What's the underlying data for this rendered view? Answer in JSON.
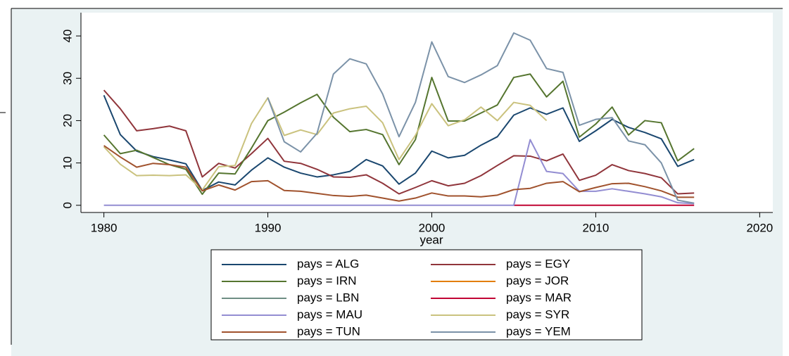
{
  "chart_data": {
    "type": "line",
    "x_label": "year",
    "x": [
      1980,
      1981,
      1982,
      1983,
      1984,
      1985,
      1986,
      1987,
      1988,
      1989,
      1990,
      1991,
      1992,
      1993,
      1994,
      1995,
      1996,
      1997,
      1998,
      1999,
      2000,
      2001,
      2002,
      2003,
      2004,
      2005,
      2006,
      2007,
      2008,
      2009,
      2010,
      2011,
      2012,
      2013,
      2014,
      2015,
      2016
    ],
    "xlim": [
      1978.6,
      2020.8
    ],
    "xticks": [
      1980,
      1990,
      2000,
      2010,
      2020
    ],
    "ylim": [
      -1.7,
      45.5
    ],
    "yticks": [
      0,
      10,
      20,
      30,
      40
    ],
    "grid": false,
    "legend_position": "bottom",
    "series": [
      {
        "name": "pays = ALG",
        "color": "#1a476f",
        "values": [
          26,
          16.7,
          12.8,
          11.5,
          10.7,
          9.8,
          3.5,
          5.5,
          4.8,
          8.3,
          11.2,
          9,
          7.6,
          6.7,
          7.2,
          8,
          10.8,
          9.3,
          5,
          7.6,
          12.8,
          11.2,
          11.8,
          14.2,
          16.2,
          21.3,
          23,
          21.5,
          23,
          15.1,
          17.6,
          20.3,
          18.4,
          17.2,
          15.7,
          9.2,
          10.8
        ]
      },
      {
        "name": "pays = EGY",
        "color": "#90353b",
        "values": [
          27.2,
          22.8,
          17.6,
          18.1,
          18.7,
          17.6,
          6.7,
          9.9,
          8.8,
          12.2,
          15.8,
          10.4,
          9.9,
          8.5,
          6.7,
          6.6,
          7.2,
          5.2,
          2.7,
          4.2,
          5.8,
          4.6,
          5.2,
          7,
          9.4,
          11.7,
          11.6,
          10.5,
          12.1,
          5.9,
          7.1,
          9.6,
          8.2,
          7.5,
          6.5,
          2.7,
          2.9
        ]
      },
      {
        "name": "pays = IRN",
        "color": "#55752f",
        "values": [
          16.6,
          12.2,
          13,
          11.3,
          9.6,
          8.5,
          2.6,
          7.6,
          7.4,
          13.5,
          20,
          22,
          24.2,
          26.2,
          20.8,
          17.4,
          17.9,
          16.7,
          9.6,
          15.5,
          30.2,
          19.9,
          19.9,
          21.8,
          23.7,
          30.2,
          31,
          25.6,
          29.3,
          16.1,
          19.2,
          23.2,
          16.6,
          20,
          19.5,
          10.5,
          13.4
        ]
      },
      {
        "name": "pays = JOR",
        "color": "#e37e00",
        "values": [
          null,
          null,
          null,
          null,
          null,
          null,
          null,
          null,
          null,
          null,
          null,
          null,
          null,
          null,
          null,
          null,
          null,
          null,
          null,
          null,
          null,
          null,
          null,
          null,
          null,
          null,
          null,
          null,
          null,
          null,
          null,
          null,
          null,
          null,
          null,
          null,
          null
        ]
      },
      {
        "name": "pays = LBN",
        "color": "#6e8e84",
        "values": [
          null,
          null,
          null,
          null,
          null,
          null,
          null,
          null,
          null,
          null,
          null,
          null,
          null,
          null,
          null,
          null,
          null,
          null,
          null,
          null,
          null,
          null,
          null,
          null,
          null,
          null,
          null,
          null,
          null,
          null,
          null,
          null,
          null,
          null,
          null,
          null,
          null
        ]
      },
      {
        "name": "pays = MAR",
        "color": "#c10534",
        "values": [
          null,
          null,
          null,
          null,
          null,
          null,
          null,
          null,
          null,
          null,
          null,
          null,
          null,
          null,
          null,
          null,
          null,
          null,
          null,
          null,
          null,
          null,
          null,
          null,
          null,
          0,
          0,
          0,
          0,
          0,
          0,
          0,
          0,
          0,
          0,
          0,
          0
        ]
      },
      {
        "name": "pays = MAU",
        "color": "#938dd2",
        "values": [
          0,
          0,
          0,
          0,
          0,
          0,
          0,
          0,
          0,
          0,
          0,
          0,
          0,
          0,
          0,
          0,
          0,
          0,
          0,
          0,
          0,
          0,
          0,
          0,
          0,
          0,
          15.5,
          8,
          7.5,
          3.3,
          3.3,
          3.9,
          3.3,
          2.7,
          2,
          0.6,
          0.4
        ]
      },
      {
        "name": "pays = SYR",
        "color": "#cac27e",
        "values": [
          13.8,
          9.7,
          7,
          7.1,
          7,
          7.2,
          3.6,
          9.1,
          9.4,
          19.3,
          25.4,
          16.5,
          17.8,
          16.7,
          21.8,
          22.8,
          23.4,
          19.5,
          10.8,
          16.5,
          24,
          18.8,
          20.2,
          23.2,
          20,
          24.3,
          23.6,
          20,
          null,
          null,
          null,
          null,
          null,
          null,
          null,
          null,
          null
        ]
      },
      {
        "name": "pays = TUN",
        "color": "#a0522d",
        "values": [
          14.1,
          11.4,
          9,
          9.9,
          9.6,
          9,
          3.4,
          4.8,
          3.6,
          5.6,
          5.8,
          3.5,
          3.3,
          2.8,
          2.3,
          2.1,
          2.4,
          1.7,
          1,
          1.7,
          2.9,
          2.2,
          2.2,
          2,
          2.4,
          3.7,
          4,
          5.2,
          5.6,
          3.2,
          4.2,
          5.1,
          5.2,
          4.4,
          3.4,
          1.9,
          1.9
        ]
      },
      {
        "name": "pays = YEM",
        "color": "#7b92a8",
        "values": [
          null,
          null,
          null,
          null,
          null,
          null,
          null,
          null,
          null,
          null,
          25.4,
          15,
          12.6,
          17,
          31,
          34.6,
          33.4,
          26.3,
          16.2,
          24.3,
          38.6,
          30.4,
          29,
          30.8,
          33,
          40.7,
          39,
          32.3,
          31.4,
          18.9,
          20.3,
          20.7,
          15.2,
          14.3,
          10,
          1.2,
          0.5
        ]
      }
    ]
  }
}
